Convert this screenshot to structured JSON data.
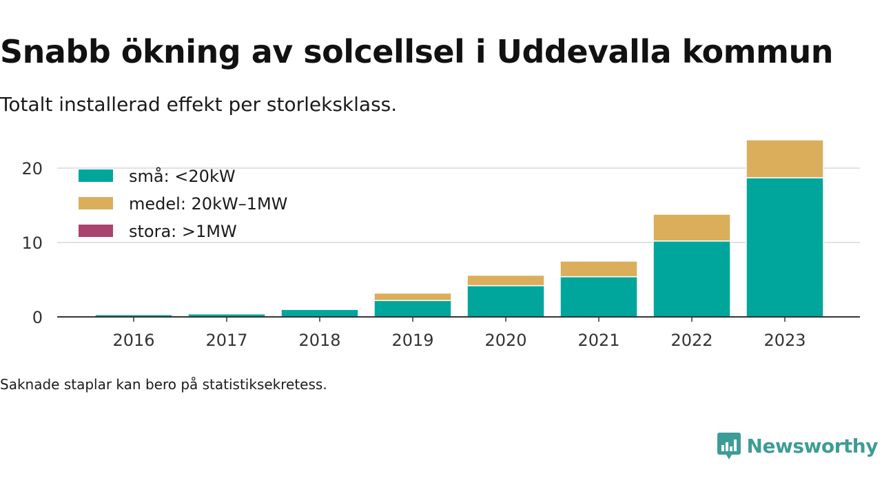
{
  "title": "Snabb ökning av solcellsel i Uddevalla kommun",
  "subtitle": "Totalt installerad effekt per storleksklass.",
  "note": "Saknade staplar kan bero på statistiksekretess.",
  "brand": {
    "name": "Newsworthy",
    "icon": "newsworthy-logo-icon",
    "color": "#3e9c96"
  },
  "chart_data": {
    "type": "bar",
    "stacked": true,
    "categories": [
      "2016",
      "2017",
      "2018",
      "2019",
      "2020",
      "2021",
      "2022",
      "2023"
    ],
    "series": [
      {
        "name": "små: <20kW",
        "color": "#00a69c",
        "values": [
          0.3,
          0.4,
          1.0,
          2.2,
          4.2,
          5.4,
          10.2,
          18.7
        ]
      },
      {
        "name": "medel: 20kW–1MW",
        "color": "#dbae5c",
        "values": [
          0,
          0,
          0,
          1.0,
          1.4,
          2.1,
          3.6,
          5.1
        ]
      },
      {
        "name": "stora: >1MW",
        "color": "#a9446c",
        "values": [
          0,
          0,
          0,
          0,
          0,
          0,
          0,
          0
        ]
      }
    ],
    "yticks": [
      0,
      10,
      20
    ],
    "ylim": [
      0,
      25
    ],
    "xlabel": "",
    "ylabel": "",
    "grid": true,
    "legend_position": "top-left"
  }
}
